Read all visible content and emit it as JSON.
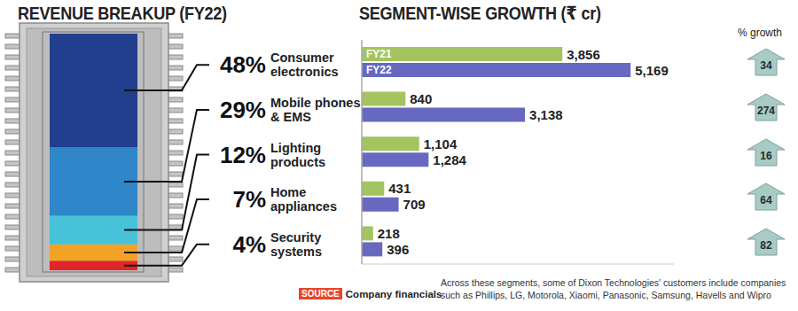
{
  "chart_data": [
    {
      "type": "bar",
      "stacked": true,
      "title": "REVENUE BREAKUP (FY22)",
      "categories": [
        null
      ],
      "series": [
        {
          "name": "Consumer electronics",
          "color": "#213f8e",
          "values": [
            48
          ],
          "value_labels": [
            "48%"
          ]
        },
        {
          "name": "Mobile phones & EMS",
          "color": "#2f86c9",
          "values": [
            29
          ],
          "value_labels": [
            "29%"
          ]
        },
        {
          "name": "Lighting products",
          "color": "#47c3d9",
          "values": [
            12
          ],
          "value_labels": [
            "12%"
          ]
        },
        {
          "name": "Home appliances",
          "color": "#f4a225",
          "values": [
            7
          ],
          "value_labels": [
            "7%"
          ]
        },
        {
          "name": "Security systems",
          "color": "#e0262b",
          "values": [
            4
          ],
          "value_labels": [
            "4%"
          ]
        }
      ],
      "ylim": [
        0,
        100
      ],
      "data_labels": true,
      "tick_labels": false
    },
    {
      "type": "bar",
      "orientation": "horizontal",
      "title": "SEGMENT-WISE GROWTH (₹ cr)",
      "categories": [
        "Consumer electronics",
        "Mobile phones & EMS",
        "Lighting products",
        "Home appliances",
        "Security systems"
      ],
      "series": [
        {
          "name": "FY21",
          "color": "#a3c45f",
          "values": [
            3856,
            840,
            1104,
            431,
            218
          ],
          "value_labels": [
            "3,856",
            "840",
            "1,104",
            "431",
            "218"
          ]
        },
        {
          "name": "FY22",
          "color": "#6769c1",
          "values": [
            5169,
            3138,
            1284,
            709,
            396
          ],
          "value_labels": [
            "5,169",
            "3,138",
            "1,284",
            "709",
            "396"
          ]
        }
      ],
      "xlim": [
        0,
        6000
      ],
      "data_labels": true,
      "tick_labels": false,
      "growth_label": "% growth",
      "growth": [
        34,
        274,
        16,
        64,
        82
      ],
      "source_label": "SOURCE",
      "source": "Company financials",
      "note": "Across these segments, some of Dixon Technologies' customers include companies such as Phillips, LG, Motorola, Xiaomi, Panasonic, Samsung, Havells and Wipro"
    }
  ]
}
